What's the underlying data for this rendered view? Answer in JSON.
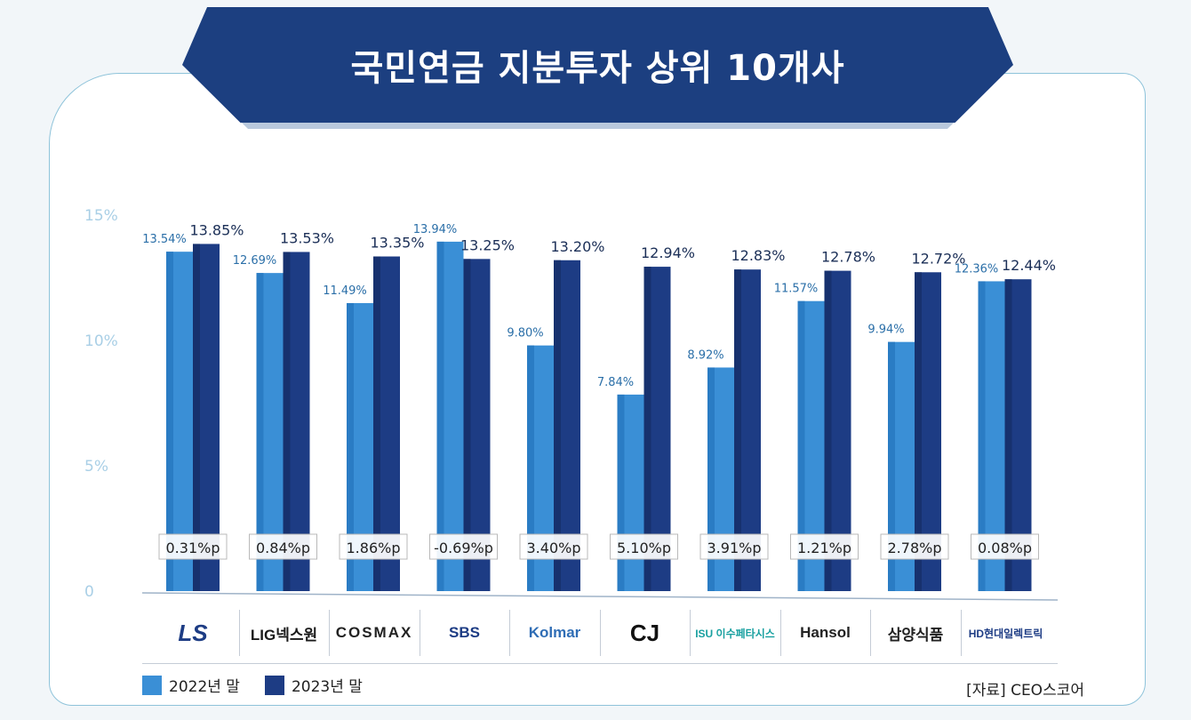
{
  "title": "국민연금 지분투자 상위 10개사",
  "chart_data": {
    "type": "bar",
    "title": "국민연금 지분투자 상위 10개사",
    "y_ticks": [
      "15%",
      "10%",
      "5%",
      "0"
    ],
    "ylim": [
      0,
      15
    ],
    "categories": [
      "LS",
      "LIG넥스원",
      "COSMAX",
      "SBS",
      "Kolmar",
      "CJ",
      "ISU 이수페타시스",
      "Hansol",
      "삼양식품",
      "HD현대일렉트릭"
    ],
    "series": [
      {
        "name": "2022년 말",
        "values": [
          13.54,
          12.69,
          11.49,
          13.94,
          9.8,
          7.84,
          8.92,
          11.57,
          9.94,
          12.36
        ],
        "labels": [
          "13.54%",
          "12.69%",
          "11.49%",
          "13.94%",
          "9.80%",
          "7.84%",
          "8.92%",
          "11.57%",
          "9.94%",
          "12.36%"
        ]
      },
      {
        "name": "2023년 말",
        "values": [
          13.85,
          13.53,
          13.35,
          13.25,
          13.2,
          12.94,
          12.83,
          12.78,
          12.72,
          12.44
        ],
        "labels": [
          "13.85%",
          "13.53%",
          "13.35%",
          "13.25%",
          "13.20%",
          "12.94%",
          "12.83%",
          "12.78%",
          "12.72%",
          "12.44%"
        ]
      }
    ],
    "change_labels": [
      "0.31%p",
      "0.84%p",
      "1.86%p",
      "-0.69%p",
      "3.40%p",
      "5.10%p",
      "3.91%p",
      "1.21%p",
      "2.78%p",
      "0.08%p"
    ],
    "colors": {
      "s2022": "#3a8fd6",
      "s2023": "#1d3c84",
      "tick": "#a9cfe6",
      "label2022": "#2b6fa8",
      "label2023": "#1b2f57"
    }
  },
  "logos": [
    {
      "text": "LS",
      "color": "#1d3c84"
    },
    {
      "text": "LIG넥스원",
      "color": "#1a1a1a"
    },
    {
      "text": "COSMAX",
      "color": "#222222"
    },
    {
      "text": "SBS",
      "color": "#1d3c84"
    },
    {
      "text": "Kolmar",
      "color": "#2f6db5"
    },
    {
      "text": "CJ",
      "color": "#111111"
    },
    {
      "text": "ISU 이수페타시스",
      "color": "#18a0a0"
    },
    {
      "text": "Hansol",
      "color": "#222222"
    },
    {
      "text": "삼양식품",
      "color": "#222222"
    },
    {
      "text": "HD현대일렉트릭",
      "color": "#1d3c84"
    }
  ],
  "legend": {
    "s2022": "2022년 말",
    "s2023": "2023년 말"
  },
  "source": "[자료] CEO스코어"
}
